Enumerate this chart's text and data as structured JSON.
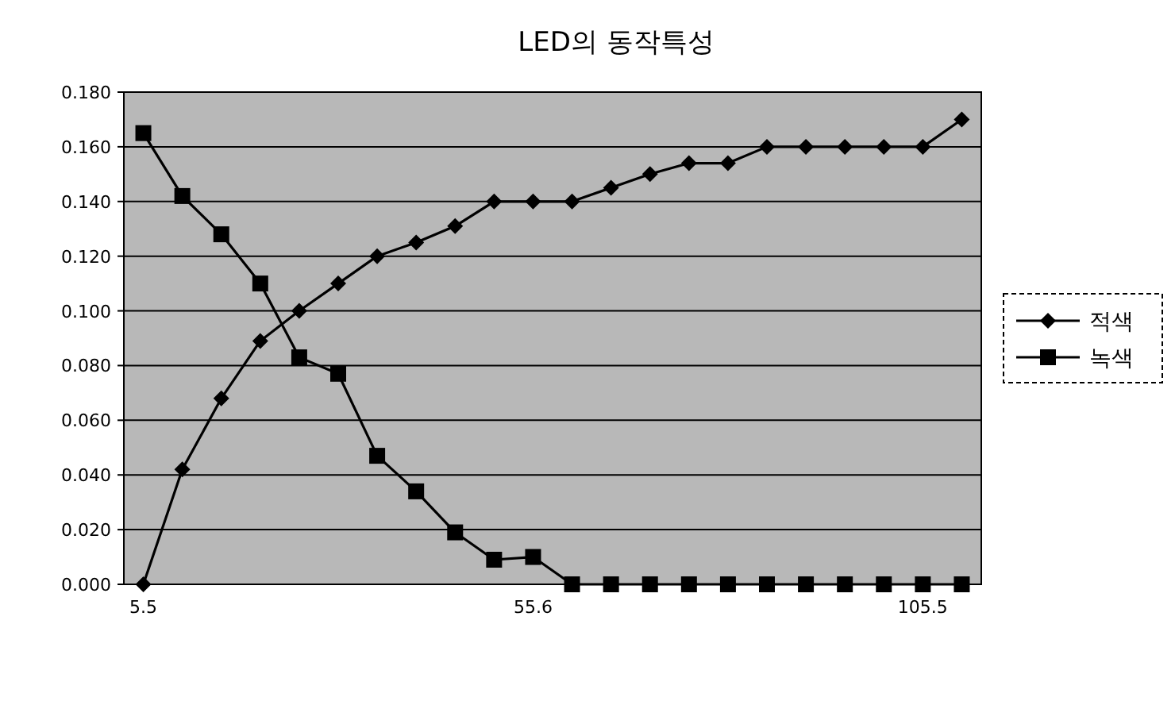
{
  "chart_data": {
    "type": "line",
    "title": "LED의 동작특성",
    "categories": [
      "5.5",
      null,
      null,
      null,
      null,
      null,
      null,
      null,
      null,
      null,
      "55.6",
      null,
      null,
      null,
      null,
      null,
      null,
      null,
      null,
      null,
      "105.5",
      null
    ],
    "series": [
      {
        "name": "적색",
        "color": "#000000",
        "marker": "diamond",
        "values": [
          0,
          0.042,
          0.068,
          0.089,
          0.1,
          0.11,
          0.12,
          0.125,
          0.131,
          0.14,
          0.14,
          0.14,
          0.145,
          0.15,
          0.154,
          0.154,
          0.16,
          0.16,
          0.16,
          0.16,
          0.16,
          0.17
        ]
      },
      {
        "name": "녹색",
        "color": "#000000",
        "marker": "square",
        "values": [
          0.165,
          0.142,
          0.128,
          0.11,
          0.083,
          0.077,
          0.047,
          0.034,
          0.019,
          0.009,
          0.01,
          0,
          0,
          0,
          0,
          0,
          0,
          0,
          0,
          0,
          0,
          0
        ]
      }
    ],
    "ylim": [
      0,
      0.18
    ],
    "yticks": [
      {
        "value": 0,
        "label": "0.000"
      },
      {
        "value": 0.02,
        "label": "0.020"
      },
      {
        "value": 0.04,
        "label": "0.040"
      },
      {
        "value": 0.06,
        "label": "0.060"
      },
      {
        "value": 0.08,
        "label": "0.080"
      },
      {
        "value": 0.1,
        "label": "0.100"
      },
      {
        "value": 0.12,
        "label": "0.120"
      },
      {
        "value": 0.14,
        "label": "0.140"
      },
      {
        "value": 0.16,
        "label": "0.160"
      },
      {
        "value": 0.18,
        "label": "0.180"
      }
    ],
    "grid": "y",
    "legend": "right",
    "line_style": "solid"
  }
}
